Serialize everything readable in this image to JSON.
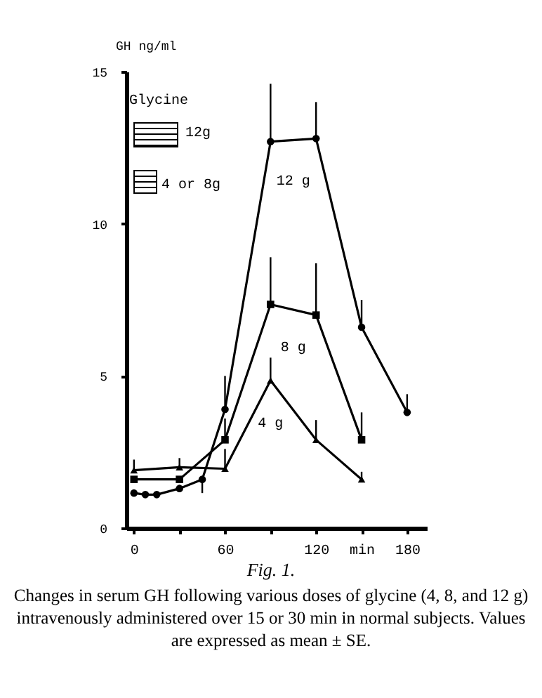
{
  "chart_data": {
    "type": "line",
    "title": "Fig. 1.",
    "ylabel": "GH ng/ml",
    "annotations": [
      "Glycine",
      "12g",
      "4 or 8g",
      "Changes in serum GH following various doses of glycine (4, 8, and 12 g) intravenously administered over 15 or 30 min in normal subjects. Values are expressed as mean ± SE."
    ],
    "xlim": [
      -5,
      193
    ],
    "xticks": [
      0,
      {
        "value": 30,
        "label": null
      },
      60,
      {
        "value": 90,
        "label": null
      },
      120,
      {
        "value": 150,
        "label": "min"
      },
      180
    ],
    "ylim": [
      0,
      15
    ],
    "yticks": [
      0,
      5,
      10,
      15
    ],
    "grid": false,
    "series": [
      {
        "name": "12 g",
        "color": "#000000",
        "marker": "circle",
        "x": [
          0,
          7.5,
          15,
          30,
          45,
          60,
          90,
          120,
          150,
          180
        ],
        "values": [
          1.15,
          1.1,
          1.1,
          1.3,
          1.6,
          3.9,
          12.7,
          12.8,
          6.6,
          3.8
        ],
        "errors": [
          null,
          null,
          null,
          null,
          [
            1.15,
            1.6
          ],
          [
            3.9,
            5.0
          ],
          [
            12.7,
            14.6
          ],
          [
            12.8,
            14.0
          ],
          [
            6.6,
            7.5
          ],
          [
            3.8,
            4.4
          ]
        ]
      },
      {
        "name": "8 g",
        "color": "#000000",
        "marker": "square",
        "x": [
          0,
          30,
          60,
          90,
          120,
          150
        ],
        "values": [
          1.6,
          1.6,
          2.9,
          7.35,
          7.0,
          2.9
        ],
        "errors": [
          null,
          null,
          [
            2.9,
            3.6
          ],
          [
            7.35,
            8.9
          ],
          [
            7.0,
            8.7
          ],
          [
            2.9,
            3.8
          ]
        ]
      },
      {
        "name": "4 g",
        "color": "#000000",
        "marker": "triangle",
        "x": [
          0,
          30,
          60,
          90,
          120,
          150
        ],
        "values": [
          1.9,
          2.0,
          1.95,
          4.85,
          2.9,
          1.6
        ],
        "errors": [
          [
            1.9,
            2.25
          ],
          [
            2.0,
            2.3
          ],
          [
            1.95,
            2.6
          ],
          [
            4.85,
            5.6
          ],
          [
            2.9,
            3.55
          ],
          [
            1.6,
            1.85
          ]
        ]
      }
    ]
  }
}
